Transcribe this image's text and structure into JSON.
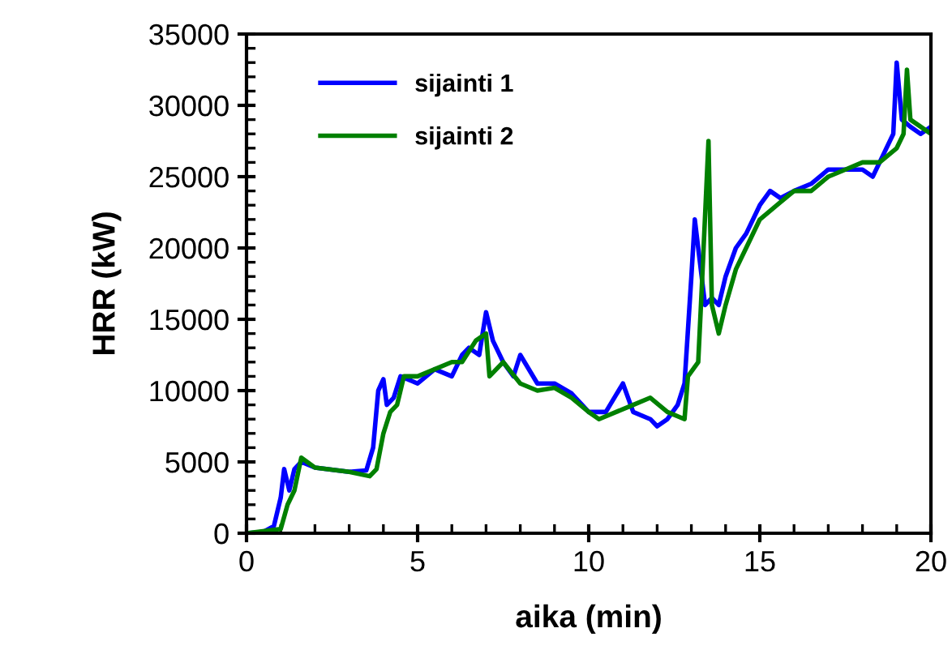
{
  "chart_data": {
    "type": "line",
    "xlabel": "aika (min)",
    "ylabel": "HRR (kW)",
    "xlim": [
      0,
      20
    ],
    "xticks": [
      0,
      5,
      10,
      15,
      20
    ],
    "ylim": [
      0,
      35000
    ],
    "yticks": [
      0,
      5000,
      10000,
      15000,
      20000,
      25000,
      30000,
      35000
    ],
    "grid": false,
    "legend": "top left",
    "marker": "none",
    "line_style": "solid",
    "series": [
      {
        "name": "sijainti 1",
        "color": "#0000ff",
        "x": [
          0,
          0.5,
          0.8,
          1.0,
          1.1,
          1.25,
          1.4,
          1.6,
          2,
          3,
          3.5,
          3.7,
          3.85,
          4.0,
          4.1,
          4.3,
          4.5,
          5,
          5.5,
          6,
          6.3,
          6.5,
          6.8,
          7.0,
          7.2,
          7.5,
          7.8,
          8,
          8.5,
          9,
          9.5,
          10,
          10.5,
          11,
          11.3,
          11.8,
          12,
          12.3,
          12.6,
          12.8,
          13.0,
          13.1,
          13.2,
          13.4,
          13.6,
          13.8,
          14,
          14.3,
          14.6,
          15,
          15.3,
          15.6,
          16,
          16.5,
          17,
          17.5,
          18,
          18.3,
          18.6,
          18.9,
          19.0,
          19.15,
          19.4,
          19.7,
          20
        ],
        "values": [
          0,
          100,
          500,
          2500,
          4500,
          3000,
          4500,
          5000,
          4600,
          4300,
          4400,
          6000,
          10000,
          10800,
          9000,
          9500,
          11000,
          10500,
          11500,
          11000,
          12500,
          13000,
          12500,
          15500,
          13500,
          12000,
          11000,
          12500,
          10500,
          10500,
          9800,
          8500,
          8500,
          10500,
          8500,
          8000,
          7500,
          8000,
          9000,
          10500,
          18000,
          22000,
          20000,
          16000,
          16500,
          16000,
          18000,
          20000,
          21000,
          23000,
          24000,
          23500,
          24000,
          24500,
          25500,
          25500,
          25500,
          25000,
          26500,
          28000,
          33000,
          29000,
          28500,
          28000,
          28500
        ]
      },
      {
        "name": "sijainti 2",
        "color": "#008000",
        "x": [
          0,
          1.0,
          1.2,
          1.4,
          1.6,
          2,
          3,
          3.6,
          3.8,
          4.0,
          4.2,
          4.4,
          4.6,
          5,
          5.5,
          6,
          6.3,
          6.7,
          7.0,
          7.1,
          7.5,
          8,
          8.5,
          9,
          9.5,
          10,
          10.3,
          10.8,
          11.3,
          11.8,
          12.3,
          12.8,
          12.9,
          13.2,
          13.3,
          13.5,
          13.6,
          13.8,
          14,
          14.3,
          14.7,
          15,
          15.5,
          16,
          16.5,
          17,
          17.5,
          18,
          18.5,
          19.0,
          19.2,
          19.3,
          19.4,
          19.7,
          20
        ],
        "values": [
          0,
          300,
          2000,
          3000,
          5300,
          4600,
          4300,
          4000,
          4500,
          7000,
          8500,
          9000,
          11000,
          11000,
          11500,
          12000,
          12000,
          13500,
          14000,
          11000,
          12000,
          10500,
          10000,
          10200,
          9500,
          8500,
          8000,
          8500,
          9000,
          9500,
          8500,
          8000,
          11000,
          12000,
          17000,
          27500,
          16000,
          14000,
          16000,
          18500,
          20500,
          22000,
          23000,
          24000,
          24000,
          25000,
          25500,
          26000,
          26000,
          27000,
          28000,
          32500,
          29000,
          28500,
          28000
        ]
      }
    ]
  }
}
